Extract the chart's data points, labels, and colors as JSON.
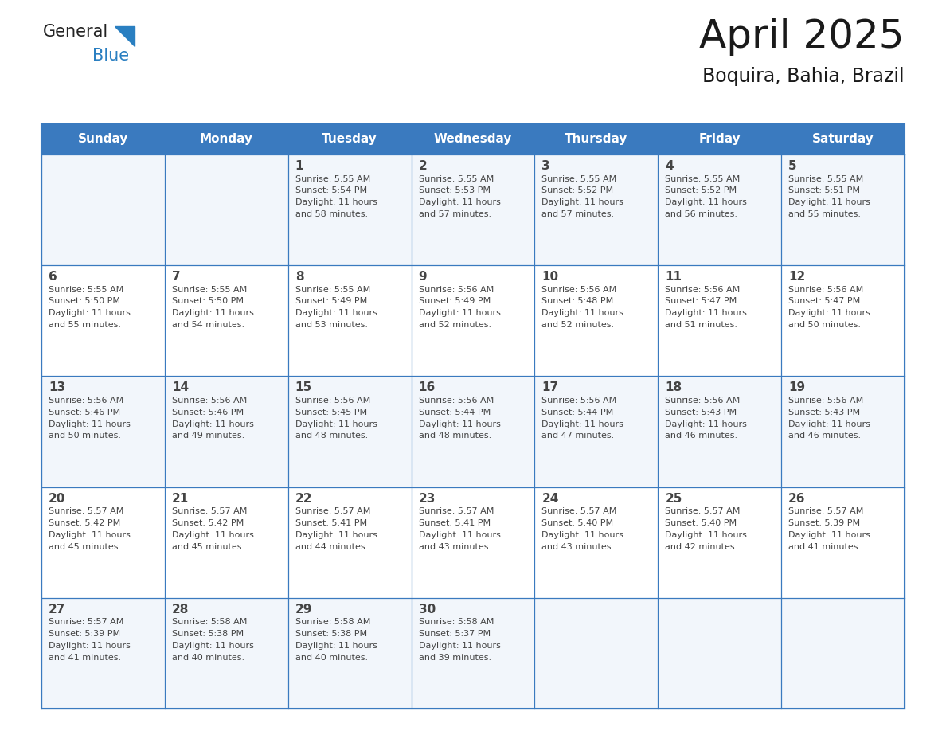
{
  "title": "April 2025",
  "subtitle": "Boquira, Bahia, Brazil",
  "header_bg_color": "#3a7abf",
  "header_text_color": "#ffffff",
  "cell_bg_color": "#ffffff",
  "cell_alt_bg": "#f2f6fb",
  "border_color": "#3a7abf",
  "text_color": "#444444",
  "days_of_week": [
    "Sunday",
    "Monday",
    "Tuesday",
    "Wednesday",
    "Thursday",
    "Friday",
    "Saturday"
  ],
  "calendar_data": [
    [
      {
        "day": "",
        "info": ""
      },
      {
        "day": "",
        "info": ""
      },
      {
        "day": "1",
        "info": "Sunrise: 5:55 AM\nSunset: 5:54 PM\nDaylight: 11 hours\nand 58 minutes."
      },
      {
        "day": "2",
        "info": "Sunrise: 5:55 AM\nSunset: 5:53 PM\nDaylight: 11 hours\nand 57 minutes."
      },
      {
        "day": "3",
        "info": "Sunrise: 5:55 AM\nSunset: 5:52 PM\nDaylight: 11 hours\nand 57 minutes."
      },
      {
        "day": "4",
        "info": "Sunrise: 5:55 AM\nSunset: 5:52 PM\nDaylight: 11 hours\nand 56 minutes."
      },
      {
        "day": "5",
        "info": "Sunrise: 5:55 AM\nSunset: 5:51 PM\nDaylight: 11 hours\nand 55 minutes."
      }
    ],
    [
      {
        "day": "6",
        "info": "Sunrise: 5:55 AM\nSunset: 5:50 PM\nDaylight: 11 hours\nand 55 minutes."
      },
      {
        "day": "7",
        "info": "Sunrise: 5:55 AM\nSunset: 5:50 PM\nDaylight: 11 hours\nand 54 minutes."
      },
      {
        "day": "8",
        "info": "Sunrise: 5:55 AM\nSunset: 5:49 PM\nDaylight: 11 hours\nand 53 minutes."
      },
      {
        "day": "9",
        "info": "Sunrise: 5:56 AM\nSunset: 5:49 PM\nDaylight: 11 hours\nand 52 minutes."
      },
      {
        "day": "10",
        "info": "Sunrise: 5:56 AM\nSunset: 5:48 PM\nDaylight: 11 hours\nand 52 minutes."
      },
      {
        "day": "11",
        "info": "Sunrise: 5:56 AM\nSunset: 5:47 PM\nDaylight: 11 hours\nand 51 minutes."
      },
      {
        "day": "12",
        "info": "Sunrise: 5:56 AM\nSunset: 5:47 PM\nDaylight: 11 hours\nand 50 minutes."
      }
    ],
    [
      {
        "day": "13",
        "info": "Sunrise: 5:56 AM\nSunset: 5:46 PM\nDaylight: 11 hours\nand 50 minutes."
      },
      {
        "day": "14",
        "info": "Sunrise: 5:56 AM\nSunset: 5:46 PM\nDaylight: 11 hours\nand 49 minutes."
      },
      {
        "day": "15",
        "info": "Sunrise: 5:56 AM\nSunset: 5:45 PM\nDaylight: 11 hours\nand 48 minutes."
      },
      {
        "day": "16",
        "info": "Sunrise: 5:56 AM\nSunset: 5:44 PM\nDaylight: 11 hours\nand 48 minutes."
      },
      {
        "day": "17",
        "info": "Sunrise: 5:56 AM\nSunset: 5:44 PM\nDaylight: 11 hours\nand 47 minutes."
      },
      {
        "day": "18",
        "info": "Sunrise: 5:56 AM\nSunset: 5:43 PM\nDaylight: 11 hours\nand 46 minutes."
      },
      {
        "day": "19",
        "info": "Sunrise: 5:56 AM\nSunset: 5:43 PM\nDaylight: 11 hours\nand 46 minutes."
      }
    ],
    [
      {
        "day": "20",
        "info": "Sunrise: 5:57 AM\nSunset: 5:42 PM\nDaylight: 11 hours\nand 45 minutes."
      },
      {
        "day": "21",
        "info": "Sunrise: 5:57 AM\nSunset: 5:42 PM\nDaylight: 11 hours\nand 45 minutes."
      },
      {
        "day": "22",
        "info": "Sunrise: 5:57 AM\nSunset: 5:41 PM\nDaylight: 11 hours\nand 44 minutes."
      },
      {
        "day": "23",
        "info": "Sunrise: 5:57 AM\nSunset: 5:41 PM\nDaylight: 11 hours\nand 43 minutes."
      },
      {
        "day": "24",
        "info": "Sunrise: 5:57 AM\nSunset: 5:40 PM\nDaylight: 11 hours\nand 43 minutes."
      },
      {
        "day": "25",
        "info": "Sunrise: 5:57 AM\nSunset: 5:40 PM\nDaylight: 11 hours\nand 42 minutes."
      },
      {
        "day": "26",
        "info": "Sunrise: 5:57 AM\nSunset: 5:39 PM\nDaylight: 11 hours\nand 41 minutes."
      }
    ],
    [
      {
        "day": "27",
        "info": "Sunrise: 5:57 AM\nSunset: 5:39 PM\nDaylight: 11 hours\nand 41 minutes."
      },
      {
        "day": "28",
        "info": "Sunrise: 5:58 AM\nSunset: 5:38 PM\nDaylight: 11 hours\nand 40 minutes."
      },
      {
        "day": "29",
        "info": "Sunrise: 5:58 AM\nSunset: 5:38 PM\nDaylight: 11 hours\nand 40 minutes."
      },
      {
        "day": "30",
        "info": "Sunrise: 5:58 AM\nSunset: 5:37 PM\nDaylight: 11 hours\nand 39 minutes."
      },
      {
        "day": "",
        "info": ""
      },
      {
        "day": "",
        "info": ""
      },
      {
        "day": "",
        "info": ""
      }
    ]
  ],
  "logo_text1": "General",
  "logo_text2": "Blue",
  "logo_color1": "#222222",
  "logo_color2": "#2a7fc1",
  "logo_triangle_color": "#2a7fc1",
  "title_fontsize": 36,
  "subtitle_fontsize": 17,
  "header_fontsize": 11,
  "day_num_fontsize": 11,
  "cell_text_fontsize": 8
}
